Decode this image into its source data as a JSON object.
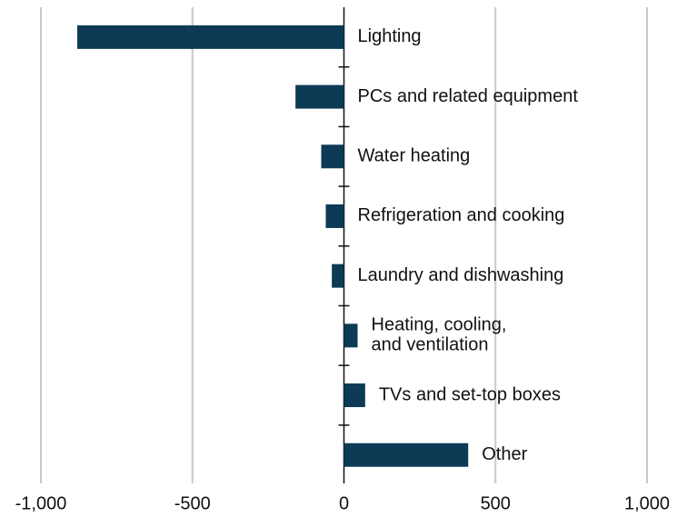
{
  "chart_data": {
    "type": "barh",
    "categories": [
      "Lighting",
      "PCs and related equipment",
      "Water heating",
      "Refrigeration and cooking",
      "Laundry and dishwashing",
      "Heating, cooling,\nand ventilation",
      "TVs and set-top boxes",
      "Other"
    ],
    "values": [
      -880,
      -160,
      -75,
      -60,
      -40,
      45,
      70,
      410
    ],
    "color": "#0d3a55",
    "xlim": [
      -1000,
      1000
    ],
    "xticks": [
      {
        "value": -1000,
        "label": "-1,000"
      },
      -500,
      0,
      500,
      {
        "value": 1000,
        "label": "1,000"
      }
    ],
    "grid": true
  }
}
